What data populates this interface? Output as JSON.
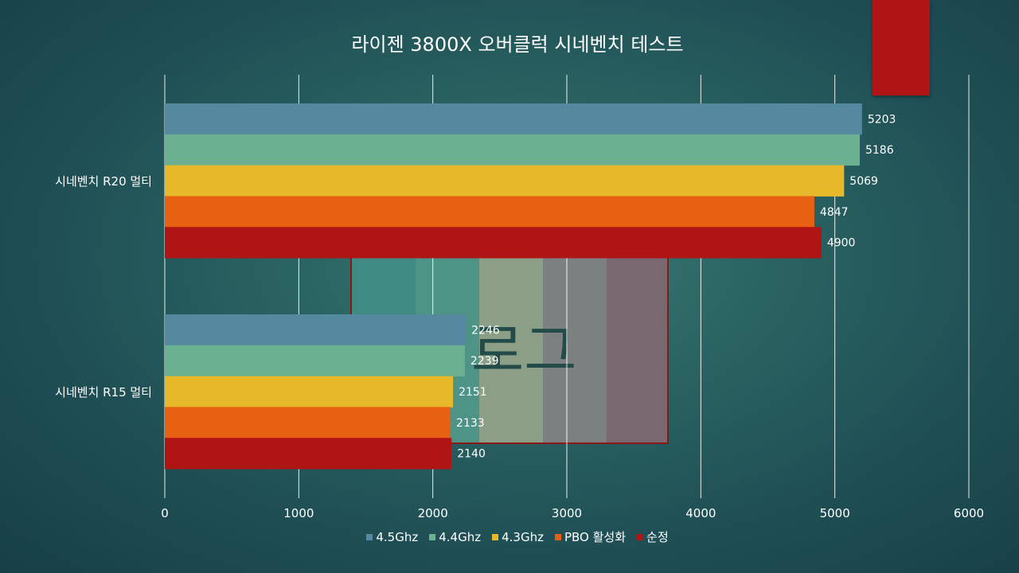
{
  "chart_data": {
    "type": "bar",
    "orientation": "horizontal",
    "title": "라이젠 3800X 오버클럭 시네벤치 테스트",
    "categories": [
      "시네벤치 R20 멀티",
      "시네벤치 R15 멀티"
    ],
    "series": [
      {
        "name": "4.5Ghz",
        "color": "#5589a0",
        "values": [
          5203,
          2246
        ]
      },
      {
        "name": "4.4Ghz",
        "color": "#6bb090",
        "values": [
          5186,
          2239
        ]
      },
      {
        "name": "4.3Ghz",
        "color": "#e6b82a",
        "values": [
          5069,
          2151
        ]
      },
      {
        "name": "PBO 활성화",
        "color": "#e86012",
        "values": [
          4847,
          2133
        ]
      },
      {
        "name": "순정",
        "color": "#b01515",
        "values": [
          4900,
          2140
        ]
      }
    ],
    "xlim": [
      0,
      6000
    ],
    "xticks": [
      0,
      1000,
      2000,
      3000,
      4000,
      5000,
      6000
    ],
    "grid": true,
    "legend_position": "bottom",
    "data_labels": true
  }
}
